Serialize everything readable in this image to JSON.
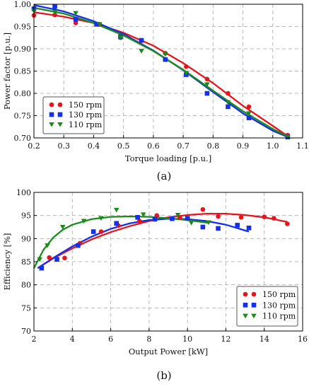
{
  "colors": {
    "s150": "#e8141b",
    "s130": "#1430e8",
    "s110": "#1a8a1a",
    "grid": "#b8b8b8"
  },
  "chart_data": [
    {
      "panel": "(a)",
      "type": "scatter",
      "xlabel": "Torque loading [p.u.]",
      "ylabel": "Power factor [p.u.]",
      "xlim": [
        0.2,
        1.1
      ],
      "ylim": [
        0.7,
        1.0
      ],
      "xticks": [
        "0.2",
        "0.3",
        "0.4",
        "0.5",
        "0.6",
        "0.7",
        "0.8",
        "0.9",
        "1.0",
        "1.1"
      ],
      "yticks": [
        "0.70",
        "0.75",
        "0.80",
        "0.85",
        "0.90",
        "0.95",
        "1.00"
      ],
      "xtick_values": [
        0.2,
        0.3,
        0.4,
        0.5,
        0.6,
        0.7,
        0.8,
        0.9,
        1.0,
        1.1
      ],
      "ytick_values": [
        0.7,
        0.75,
        0.8,
        0.85,
        0.9,
        0.95,
        1.0
      ],
      "grid": true,
      "legend_position": "bottom-left",
      "series": [
        {
          "name": "150 rpm",
          "marker": "circle",
          "color": "#e8141b",
          "points": [
            [
              0.2,
              0.975
            ],
            [
              0.27,
              0.976
            ],
            [
              0.34,
              0.958
            ],
            [
              0.42,
              0.955
            ],
            [
              0.49,
              0.925
            ],
            [
              0.56,
              0.918
            ],
            [
              0.64,
              0.89
            ],
            [
              0.71,
              0.86
            ],
            [
              0.78,
              0.832
            ],
            [
              0.85,
              0.8
            ],
            [
              0.92,
              0.77
            ],
            [
              1.05,
              0.706
            ]
          ],
          "fit": [
            [
              0.2,
              0.982
            ],
            [
              0.3,
              0.972
            ],
            [
              0.4,
              0.958
            ],
            [
              0.5,
              0.936
            ],
            [
              0.6,
              0.907
            ],
            [
              0.7,
              0.868
            ],
            [
              0.8,
              0.823
            ],
            [
              0.9,
              0.772
            ],
            [
              1.0,
              0.727
            ],
            [
              1.05,
              0.704
            ]
          ]
        },
        {
          "name": "130 rpm",
          "marker": "square",
          "color": "#1430e8",
          "points": [
            [
              0.2,
              0.99
            ],
            [
              0.27,
              0.995
            ],
            [
              0.34,
              0.966
            ],
            [
              0.41,
              0.955
            ],
            [
              0.49,
              0.927
            ],
            [
              0.56,
              0.919
            ],
            [
              0.64,
              0.876
            ],
            [
              0.71,
              0.842
            ],
            [
              0.78,
              0.8
            ],
            [
              0.85,
              0.77
            ],
            [
              0.92,
              0.745
            ],
            [
              1.05,
              0.702
            ]
          ],
          "fit": [
            [
              0.2,
              0.998
            ],
            [
              0.3,
              0.984
            ],
            [
              0.4,
              0.962
            ],
            [
              0.5,
              0.933
            ],
            [
              0.6,
              0.896
            ],
            [
              0.7,
              0.852
            ],
            [
              0.8,
              0.803
            ],
            [
              0.9,
              0.755
            ],
            [
              1.0,
              0.716
            ],
            [
              1.05,
              0.702
            ]
          ]
        },
        {
          "name": "110 rpm",
          "marker": "triangle-down",
          "color": "#1a8a1a",
          "points": [
            [
              0.2,
              0.985
            ],
            [
              0.27,
              0.982
            ],
            [
              0.34,
              0.98
            ],
            [
              0.42,
              0.955
            ],
            [
              0.49,
              0.925
            ],
            [
              0.56,
              0.895
            ],
            [
              0.64,
              0.888
            ],
            [
              0.71,
              0.845
            ],
            [
              0.78,
              0.82
            ],
            [
              0.85,
              0.78
            ],
            [
              0.92,
              0.755
            ],
            [
              1.05,
              0.702
            ]
          ],
          "fit": [
            [
              0.2,
              0.992
            ],
            [
              0.3,
              0.979
            ],
            [
              0.4,
              0.958
            ],
            [
              0.5,
              0.93
            ],
            [
              0.6,
              0.895
            ],
            [
              0.7,
              0.853
            ],
            [
              0.8,
              0.806
            ],
            [
              0.9,
              0.76
            ],
            [
              1.0,
              0.72
            ],
            [
              1.05,
              0.703
            ]
          ]
        }
      ]
    },
    {
      "panel": "(b)",
      "type": "scatter",
      "xlabel": "Output Power [kW]",
      "ylabel": "Efficiency [%]",
      "xlim": [
        2,
        16
      ],
      "ylim": [
        70,
        100
      ],
      "xticks": [
        "2",
        "4",
        "6",
        "8",
        "10",
        "12",
        "14",
        "16"
      ],
      "yticks": [
        "70",
        "75",
        "80",
        "85",
        "90",
        "95",
        "100"
      ],
      "xtick_values": [
        2,
        4,
        6,
        8,
        10,
        12,
        14,
        16
      ],
      "ytick_values": [
        70,
        75,
        80,
        85,
        90,
        95,
        100
      ],
      "grid": true,
      "legend_position": "bottom-right",
      "series": [
        {
          "name": "150 rpm",
          "marker": "circle",
          "color": "#e8141b",
          "points": [
            [
              2.8,
              85.9
            ],
            [
              3.6,
              85.8
            ],
            [
              4.4,
              89
            ],
            [
              5.5,
              91.5
            ],
            [
              6.4,
              92.8
            ],
            [
              7.5,
              93.8
            ],
            [
              8.4,
              95
            ],
            [
              9.6,
              94.6
            ],
            [
              10.8,
              96.3
            ],
            [
              11.6,
              94.8
            ],
            [
              12.8,
              94.6
            ],
            [
              14.0,
              94.7
            ],
            [
              14.5,
              94.4
            ],
            [
              15.2,
              93.2
            ]
          ],
          "fit": [
            [
              2.2,
              83.6
            ],
            [
              3,
              85.7
            ],
            [
              4,
              87.9
            ],
            [
              5,
              89.8
            ],
            [
              6,
              91.4
            ],
            [
              7,
              92.7
            ],
            [
              8,
              93.8
            ],
            [
              9,
              94.6
            ],
            [
              10,
              95.1
            ],
            [
              11,
              95.4
            ],
            [
              12,
              95.4
            ],
            [
              13,
              95.1
            ],
            [
              14,
              94.6
            ],
            [
              15.2,
              93.6
            ]
          ]
        },
        {
          "name": "130 rpm",
          "marker": "square",
          "color": "#1430e8",
          "points": [
            [
              2.4,
              83.6
            ],
            [
              3.2,
              85.5
            ],
            [
              4.3,
              88.5
            ],
            [
              5.1,
              91.5
            ],
            [
              6.3,
              93.3
            ],
            [
              7.4,
              94.6
            ],
            [
              8.3,
              94.2
            ],
            [
              9.2,
              94.3
            ],
            [
              10.0,
              94.4
            ],
            [
              10.8,
              92.5
            ],
            [
              11.6,
              92.2
            ],
            [
              12.6,
              92.9
            ],
            [
              13.2,
              92.3
            ]
          ],
          "fit": [
            [
              2.2,
              83.6
            ],
            [
              3,
              85.8
            ],
            [
              4,
              88.3
            ],
            [
              5,
              90.4
            ],
            [
              6,
              92.1
            ],
            [
              7,
              93.3
            ],
            [
              8,
              94.0
            ],
            [
              9,
              94.3
            ],
            [
              10,
              94.2
            ],
            [
              11,
              93.8
            ],
            [
              12,
              93.0
            ],
            [
              13.2,
              91.5
            ]
          ]
        },
        {
          "name": "110 rpm",
          "marker": "triangle-down",
          "color": "#1a8a1a",
          "points": [
            [
              2.3,
              85.5
            ],
            [
              2.7,
              88.5
            ],
            [
              3.5,
              92.5
            ],
            [
              4.6,
              93.8
            ],
            [
              5.5,
              94.4
            ],
            [
              6.3,
              96.2
            ],
            [
              7.7,
              95.2
            ],
            [
              9.5,
              95.1
            ],
            [
              10.2,
              93.4
            ],
            [
              11.1,
              93.5
            ]
          ],
          "fit": [
            [
              2,
              83.6
            ],
            [
              2.5,
              87.6
            ],
            [
              3,
              90.2
            ],
            [
              3.5,
              91.9
            ],
            [
              4,
              93.0
            ],
            [
              5,
              94.2
            ],
            [
              6,
              94.7
            ],
            [
              7,
              94.8
            ],
            [
              8,
              94.7
            ],
            [
              9,
              94.4
            ],
            [
              10,
              94.0
            ],
            [
              11.1,
              93.4
            ]
          ]
        }
      ]
    }
  ]
}
